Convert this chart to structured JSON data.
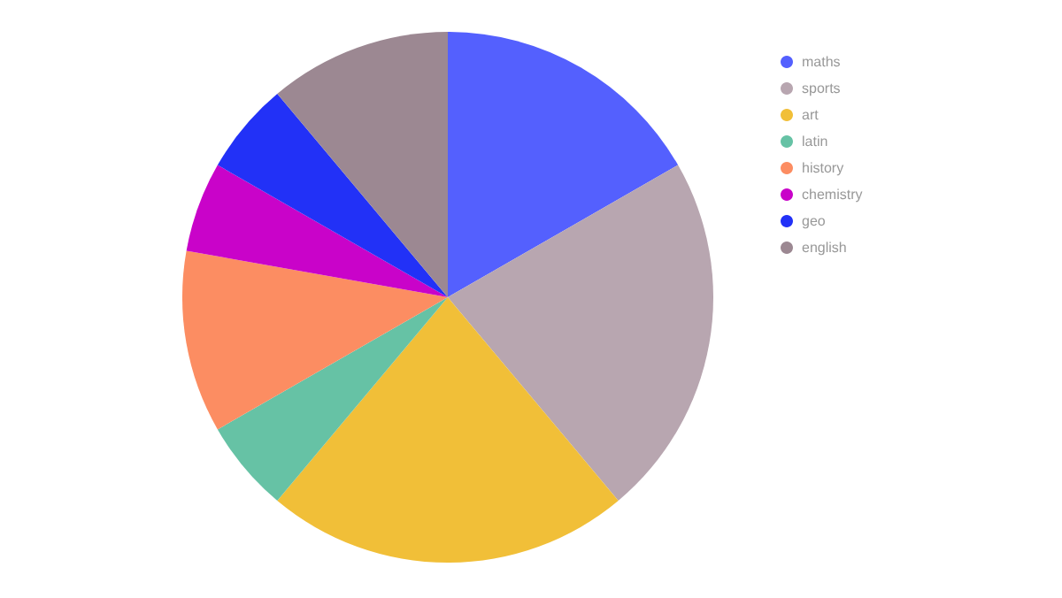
{
  "chart_data": {
    "type": "pie",
    "categories": [
      "maths",
      "sports",
      "art",
      "latin",
      "history",
      "chemistry",
      "geo",
      "english"
    ],
    "values": [
      16.7,
      22.2,
      22.2,
      5.6,
      11.1,
      5.5,
      5.6,
      11.1
    ],
    "colors": [
      "#5460fe",
      "#b8a6b0",
      "#f1bf38",
      "#66c2a5",
      "#fc8d62",
      "#c903c9",
      "#2231f7",
      "#9c8892"
    ],
    "legend": "top right"
  }
}
